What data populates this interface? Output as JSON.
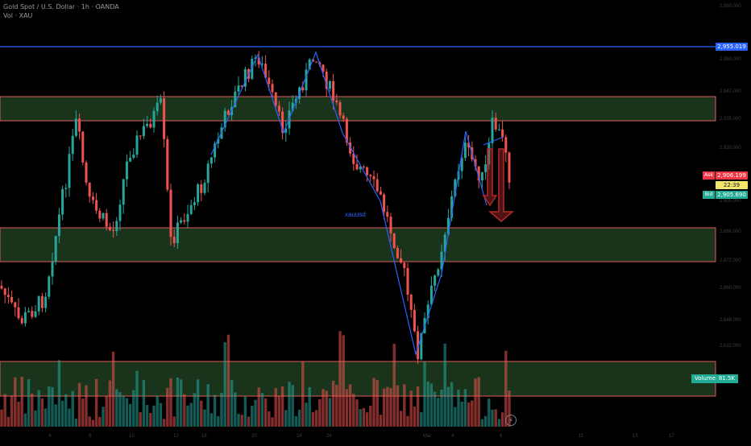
{
  "header": {
    "title": "Gold Spot / U.S. Dollar · 1h · OANDA",
    "volume_line": "Vol · XAU"
  },
  "symbol_label": "xauusd",
  "price_axis": {
    "ticks": [
      "2,980.000",
      "2,960.000",
      "2,947.000",
      "2,935.000",
      "2,920.000",
      "2,900.000",
      "2,886.000",
      "2,872.000",
      "2,860.000",
      "2,848.000",
      "2,832.000"
    ],
    "resistance_tag": "2,955.019",
    "ask_label": "Ask",
    "ask_price": "2,906.199",
    "countdown": "22:39",
    "bid_label": "Bid",
    "bid_price": "2,905.690"
  },
  "volume": {
    "label": "Volume",
    "value": "81.5K"
  },
  "time_axis": {
    "ticks": [
      "4",
      "6",
      "10",
      "12",
      "18",
      "20",
      "24",
      "26",
      "Mar",
      "4",
      "6",
      "11",
      "13",
      "17"
    ]
  },
  "colors": {
    "bull": "#26a69a",
    "bear": "#ef5350",
    "zone_fill": "#1f3d21",
    "zone_border": "#e05a5a",
    "resistance_line": "#2962ff",
    "pattern_line": "#2962ff",
    "arrow": "#b22a2a",
    "ask_bg": "#f23645",
    "bid_bg": "#22ab94",
    "countdown_bg": "#f2e66c"
  },
  "icons": {
    "reset": "lightning-icon"
  }
}
